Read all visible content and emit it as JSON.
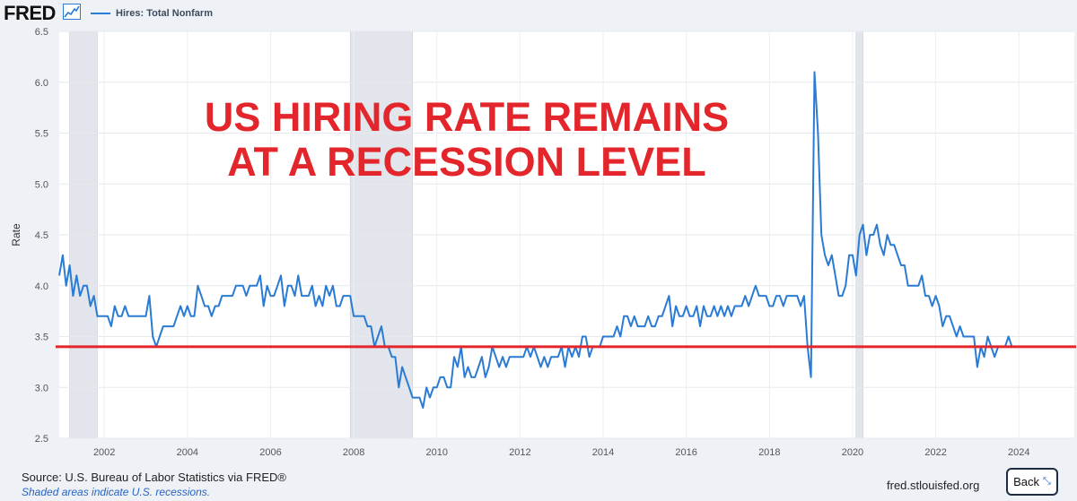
{
  "header": {
    "logo_text": "FRED",
    "logo_icon": "trend-line-icon",
    "legend_label": "Hires: Total Nonfarm",
    "series_color": "#2a7bd4"
  },
  "annotation": {
    "line1": "US HIRING RATE REMAINS",
    "line2": "AT A RECESSION LEVEL",
    "color": "#e3262b"
  },
  "footer": {
    "source": "U.S. Bureau of Labor Statistics via FRED®",
    "source_prefix": "Source: ",
    "recession_note": "Shaded areas indicate U.S. recessions.",
    "site": "fred.stlouisfed.org",
    "back_label": "Back"
  },
  "chart_data": {
    "type": "line",
    "title": "",
    "xlabel": "",
    "ylabel": "Rate",
    "ylim": [
      2.5,
      6.5
    ],
    "xlim": [
      "2000-12",
      "2025-05"
    ],
    "grid": true,
    "legend_position": "top-left",
    "y_ticks": [
      "2.5",
      "3.0",
      "3.5",
      "4.0",
      "4.5",
      "5.0",
      "5.5",
      "6.0",
      "6.5"
    ],
    "x_ticks": [
      "2002",
      "2004",
      "2006",
      "2008",
      "2010",
      "2012",
      "2014",
      "2016",
      "2018",
      "2020",
      "2022",
      "2024"
    ],
    "recessions": [
      {
        "start": "2001-03",
        "end": "2001-11"
      },
      {
        "start": "2007-12",
        "end": "2009-06"
      },
      {
        "start": "2020-02",
        "end": "2020-04"
      }
    ],
    "reference_line": {
      "y": 3.4,
      "color": "#e3262b"
    },
    "series": [
      {
        "name": "Hires: Total Nonfarm",
        "color": "#2a7bd4",
        "start": "2000-12",
        "values": [
          4.1,
          4.3,
          4.0,
          4.2,
          3.9,
          4.1,
          3.9,
          4.0,
          4.0,
          3.8,
          3.9,
          3.7,
          3.7,
          3.7,
          3.7,
          3.6,
          3.8,
          3.7,
          3.7,
          3.8,
          3.7,
          3.7,
          3.7,
          3.7,
          3.7,
          3.7,
          3.9,
          3.5,
          3.4,
          3.5,
          3.6,
          3.6,
          3.6,
          3.6,
          3.7,
          3.8,
          3.7,
          3.8,
          3.7,
          3.7,
          4.0,
          3.9,
          3.8,
          3.8,
          3.7,
          3.8,
          3.8,
          3.9,
          3.9,
          3.9,
          3.9,
          4.0,
          4.0,
          4.0,
          3.9,
          4.0,
          4.0,
          4.0,
          4.1,
          3.8,
          4.0,
          3.9,
          3.9,
          4.0,
          4.1,
          3.8,
          4.0,
          4.0,
          3.9,
          4.1,
          3.9,
          3.9,
          3.9,
          4.0,
          3.8,
          3.9,
          3.8,
          4.0,
          3.9,
          4.0,
          3.8,
          3.8,
          3.9,
          3.9,
          3.9,
          3.7,
          3.7,
          3.7,
          3.7,
          3.6,
          3.6,
          3.4,
          3.5,
          3.6,
          3.4,
          3.4,
          3.3,
          3.3,
          3.0,
          3.2,
          3.1,
          3.0,
          2.9,
          2.9,
          2.9,
          2.8,
          3.0,
          2.9,
          3.0,
          3.0,
          3.1,
          3.1,
          3.0,
          3.0,
          3.3,
          3.2,
          3.4,
          3.1,
          3.2,
          3.1,
          3.1,
          3.2,
          3.3,
          3.1,
          3.2,
          3.4,
          3.3,
          3.2,
          3.3,
          3.2,
          3.3,
          3.3,
          3.3,
          3.3,
          3.3,
          3.4,
          3.3,
          3.4,
          3.3,
          3.2,
          3.3,
          3.2,
          3.3,
          3.3,
          3.3,
          3.4,
          3.2,
          3.4,
          3.3,
          3.4,
          3.3,
          3.5,
          3.5,
          3.3,
          3.4,
          3.4,
          3.4,
          3.5,
          3.5,
          3.5,
          3.5,
          3.6,
          3.5,
          3.7,
          3.7,
          3.6,
          3.7,
          3.6,
          3.6,
          3.6,
          3.7,
          3.6,
          3.6,
          3.7,
          3.7,
          3.8,
          3.9,
          3.6,
          3.8,
          3.7,
          3.7,
          3.8,
          3.7,
          3.7,
          3.8,
          3.6,
          3.8,
          3.7,
          3.7,
          3.8,
          3.7,
          3.8,
          3.7,
          3.8,
          3.7,
          3.8,
          3.8,
          3.8,
          3.9,
          3.8,
          3.9,
          4.0,
          3.9,
          3.9,
          3.9,
          3.8,
          3.8,
          3.9,
          3.9,
          3.8,
          3.9,
          3.9,
          3.9,
          3.9,
          3.8,
          3.9,
          3.4,
          3.1,
          6.1,
          5.5,
          4.5,
          4.3,
          4.2,
          4.3,
          4.1,
          3.9,
          3.9,
          4.0,
          4.3,
          4.3,
          4.1,
          4.5,
          4.6,
          4.3,
          4.5,
          4.5,
          4.6,
          4.4,
          4.3,
          4.5,
          4.4,
          4.4,
          4.3,
          4.2,
          4.2,
          4.0,
          4.0,
          4.0,
          4.0,
          4.1,
          3.9,
          3.9,
          3.8,
          3.9,
          3.8,
          3.6,
          3.7,
          3.7,
          3.6,
          3.5,
          3.6,
          3.5,
          3.5,
          3.5,
          3.5,
          3.2,
          3.4,
          3.3,
          3.5,
          3.4,
          3.3,
          3.4,
          3.4,
          3.4,
          3.5,
          3.4
        ]
      }
    ]
  }
}
